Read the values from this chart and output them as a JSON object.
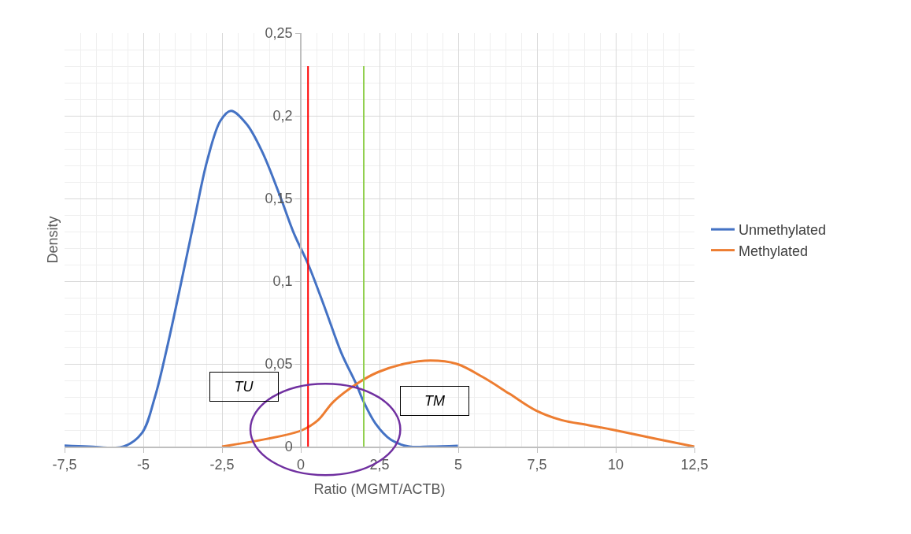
{
  "chart_data": {
    "type": "line",
    "xlabel": "Ratio (MGMT/ACTB)",
    "ylabel": "Density",
    "series": [
      {
        "name": "Unmethylated",
        "color": "#4472c4",
        "x": [
          -7.5,
          -6.73,
          -5.63,
          -5.05,
          -4.63,
          -4.22,
          -3.8,
          -3.38,
          -2.97,
          -2.55,
          -2.22,
          -1.72,
          -1.22,
          -0.63,
          -0.22,
          0.24,
          0.78,
          1.28,
          1.78,
          1.95,
          2.37,
          2.87,
          3.45,
          4.12,
          4.99
        ],
        "values": [
          0.0006,
          0,
          0,
          0.008,
          0.03,
          0.062,
          0.099,
          0.137,
          0.173,
          0.197,
          0.203,
          0.195,
          0.178,
          0.15,
          0.129,
          0.11,
          0.083,
          0.057,
          0.037,
          0.029,
          0.014,
          0.004,
          0,
          0,
          0.0005
        ]
      },
      {
        "name": "Methylated",
        "color": "#ed7d31",
        "x": [
          -2.5,
          -0.72,
          0.05,
          0.55,
          1.03,
          1.78,
          2.45,
          3.28,
          4.12,
          4.95,
          5.78,
          6.62,
          7.45,
          8.28,
          9.12,
          9.95,
          11.2,
          12.5
        ],
        "values": [
          0,
          0.006,
          0.01,
          0.016,
          0.027,
          0.038,
          0.045,
          0.05,
          0.052,
          0.05,
          0.042,
          0.032,
          0.022,
          0.016,
          0.013,
          0.01,
          0.005,
          0
        ]
      }
    ],
    "xlim": [
      -7.5,
      12.5
    ],
    "xticks": [
      {
        "value": -7.5,
        "label": "-7,5"
      },
      -5,
      {
        "value": -2.5,
        "label": "-2,5"
      },
      0,
      {
        "value": 2.5,
        "label": "2,5"
      },
      5,
      {
        "value": 7.5,
        "label": "7,5"
      },
      10,
      {
        "value": 12.5,
        "label": "12,5"
      }
    ],
    "ylim": [
      0,
      0.25
    ],
    "yticks": [
      0,
      {
        "value": 0.05,
        "label": "0,05"
      },
      {
        "value": 0.1,
        "label": "0,1"
      },
      {
        "value": 0.15,
        "label": "0,15"
      },
      {
        "value": 0.2,
        "label": "0,2"
      },
      {
        "value": 0.25,
        "label": "0,25"
      }
    ],
    "ref_lines": [
      {
        "axis": "x",
        "value": 0.23,
        "color": "#ff0000"
      },
      {
        "axis": "x",
        "value": 2,
        "color": "#92d050"
      }
    ],
    "annotations": [
      "TU",
      "TM"
    ],
    "grid": true,
    "legend": "right",
    "marker": "none",
    "line_style": "solid"
  }
}
